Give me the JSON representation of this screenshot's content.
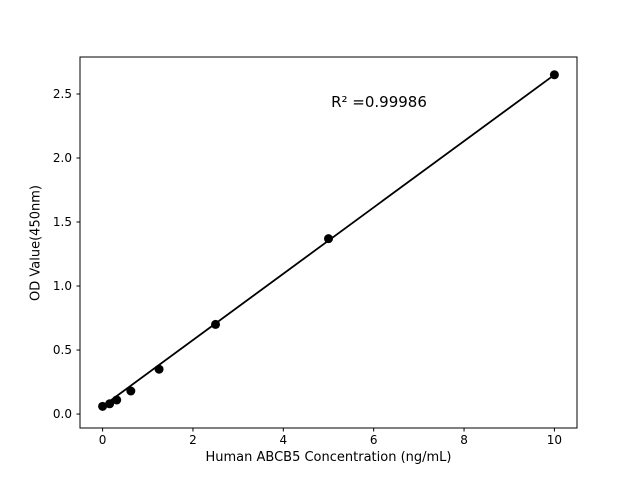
{
  "chart_data": {
    "type": "scatter",
    "title": "",
    "xlabel": "Human ABCB5 Concentration (ng/mL)",
    "ylabel": "OD Value(450nm)",
    "x": [
      0,
      0.156,
      0.313,
      0.625,
      1.25,
      2.5,
      5,
      10
    ],
    "y": [
      0.06,
      0.08,
      0.11,
      0.18,
      0.35,
      0.7,
      1.37,
      2.65
    ],
    "trendline": {
      "x1": 0,
      "y1": 0.06,
      "x2": 10,
      "y2": 2.65
    },
    "annotation": {
      "text": "R² =0.99986",
      "x": 6.07,
      "y": 2.39
    },
    "xticks": {
      "values": [
        0,
        2,
        4,
        6,
        8,
        10
      ],
      "labels": [
        "0",
        "2",
        "4",
        "6",
        "8",
        "10"
      ]
    },
    "yticks": {
      "values": [
        0.0,
        0.5,
        1.0,
        1.5,
        2.0,
        2.5
      ],
      "labels": [
        "0.0",
        "0.5",
        "1.0",
        "1.5",
        "2.0",
        "2.5"
      ]
    },
    "xlim": [
      -0.5,
      10.5
    ],
    "ylim": [
      -0.109,
      2.789
    ],
    "grid": false,
    "legend": "none",
    "marker_color": "#000000",
    "line_color": "#000000",
    "axis_color": "#000000",
    "background_color": "#ffffff"
  }
}
